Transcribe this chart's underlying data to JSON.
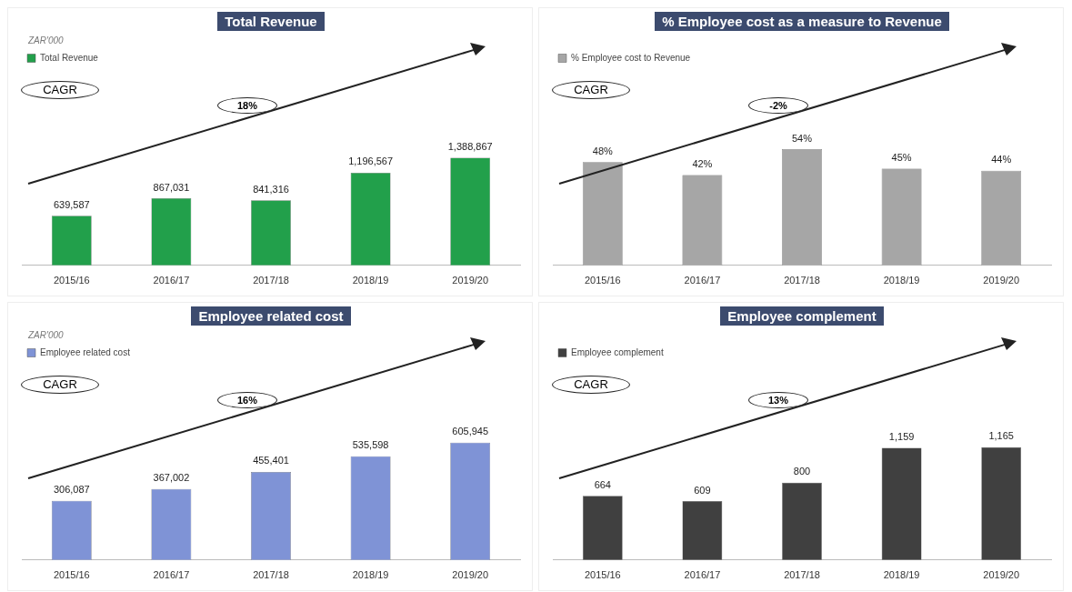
{
  "chart_data": [
    {
      "type": "bar",
      "title": "Total Revenue",
      "categories": [
        "2015/16",
        "2016/17",
        "2017/18",
        "2018/19",
        "2019/20"
      ],
      "legend": "top left",
      "series": [
        {
          "name": "Total Revenue",
          "color": "#22a04b",
          "values": [
            639587,
            867031,
            841316,
            1196567,
            1388867
          ],
          "value_labels": [
            "639,587",
            "867,031",
            "841,316",
            "1,196,567",
            "1,388,867"
          ]
        }
      ],
      "annotations": [
        "ZAR'000",
        "CAGR",
        "18%"
      ]
    },
    {
      "type": "bar",
      "title": "% Employee cost  as a measure to Revenue",
      "categories": [
        "2015/16",
        "2016/17",
        "2017/18",
        "2018/19",
        "2019/20"
      ],
      "legend": "top left",
      "series": [
        {
          "name": "% Employee cost to Revenue",
          "color": "#a6a6a6",
          "values": [
            48,
            42,
            54,
            45,
            44
          ],
          "value_labels": [
            "48%",
            "42%",
            "54%",
            "45%",
            "44%"
          ]
        }
      ],
      "annotations": [
        "CAGR",
        "-2%"
      ]
    },
    {
      "type": "bar",
      "title": "Employee related cost",
      "categories": [
        "2015/16",
        "2016/17",
        "2017/18",
        "2018/19",
        "2019/20"
      ],
      "legend": "top left",
      "series": [
        {
          "name": "Employee related cost",
          "color": "#7f93d6",
          "values": [
            306087,
            367002,
            455401,
            535598,
            605945
          ],
          "value_labels": [
            "306,087",
            "367,002",
            "455,401",
            "535,598",
            "605,945"
          ]
        }
      ],
      "annotations": [
        "ZAR'000",
        "CAGR",
        "16%"
      ]
    },
    {
      "type": "bar",
      "title": "Employee complement",
      "categories": [
        "2015/16",
        "2016/17",
        "2017/18",
        "2018/19",
        "2019/20"
      ],
      "legend": "top left",
      "series": [
        {
          "name": "Employee complement",
          "color": "#404040",
          "values": [
            664,
            609,
            800,
            1159,
            1165
          ],
          "value_labels": [
            "664",
            "609",
            "800",
            "1,159",
            "1,165"
          ]
        }
      ],
      "annotations": [
        "CAGR",
        "13%"
      ]
    }
  ]
}
